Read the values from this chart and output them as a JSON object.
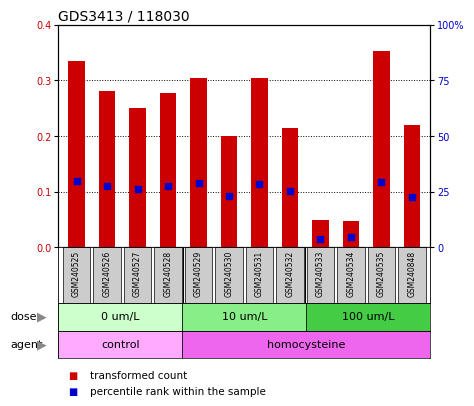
{
  "title": "GDS3413 / 118030",
  "samples": [
    "GSM240525",
    "GSM240526",
    "GSM240527",
    "GSM240528",
    "GSM240529",
    "GSM240530",
    "GSM240531",
    "GSM240532",
    "GSM240533",
    "GSM240534",
    "GSM240535",
    "GSM240848"
  ],
  "transformed_count": [
    0.334,
    0.28,
    0.25,
    0.278,
    0.305,
    0.2,
    0.305,
    0.215,
    0.05,
    0.048,
    0.352,
    0.22
  ],
  "percentile_rank": [
    0.12,
    0.11,
    0.105,
    0.11,
    0.115,
    0.092,
    0.113,
    0.101,
    0.015,
    0.018,
    0.118,
    0.091
  ],
  "left_ylim": [
    0,
    0.4
  ],
  "right_ylim": [
    0,
    100
  ],
  "left_yticks": [
    0,
    0.1,
    0.2,
    0.3,
    0.4
  ],
  "right_yticks": [
    0,
    25,
    50,
    75,
    100
  ],
  "right_yticklabels": [
    "0",
    "25",
    "50",
    "75",
    "100%"
  ],
  "bar_color": "#CC0000",
  "percentile_color": "#0000CC",
  "bar_width": 0.55,
  "dose_groups": [
    {
      "label": "0 um/L",
      "start": 0,
      "end": 4,
      "color": "#CCFFCC"
    },
    {
      "label": "10 um/L",
      "start": 4,
      "end": 8,
      "color": "#88EE88"
    },
    {
      "label": "100 um/L",
      "start": 8,
      "end": 12,
      "color": "#44CC44"
    }
  ],
  "agent_groups": [
    {
      "label": "control",
      "start": 0,
      "end": 4,
      "color": "#FFAAFF"
    },
    {
      "label": "homocysteine",
      "start": 4,
      "end": 12,
      "color": "#EE66EE"
    }
  ],
  "dose_label": "dose",
  "agent_label": "agent",
  "legend_items": [
    {
      "label": "transformed count",
      "color": "#CC0000"
    },
    {
      "label": "percentile rank within the sample",
      "color": "#0000CC"
    }
  ],
  "bg_color": "#FFFFFF",
  "axis_color_left": "#CC0000",
  "axis_color_right": "#0000CC",
  "sample_bg": "#CCCCCC",
  "title_fontsize": 10,
  "tick_fontsize": 7,
  "label_fontsize": 8,
  "sample_fontsize": 5.5,
  "legend_fontsize": 7.5
}
